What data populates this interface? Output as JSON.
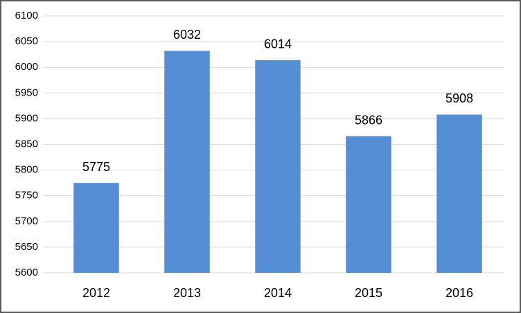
{
  "chart_data": {
    "type": "bar",
    "categories": [
      "2012",
      "2013",
      "2014",
      "2015",
      "2016"
    ],
    "values": [
      5775,
      6032,
      6014,
      5866,
      5908
    ],
    "color": "#558ed5",
    "ylim": [
      5600,
      6100
    ],
    "yticks": [
      5600,
      5650,
      5700,
      5750,
      5800,
      5850,
      5900,
      5950,
      6000,
      6050,
      6100
    ],
    "grid": true
  }
}
